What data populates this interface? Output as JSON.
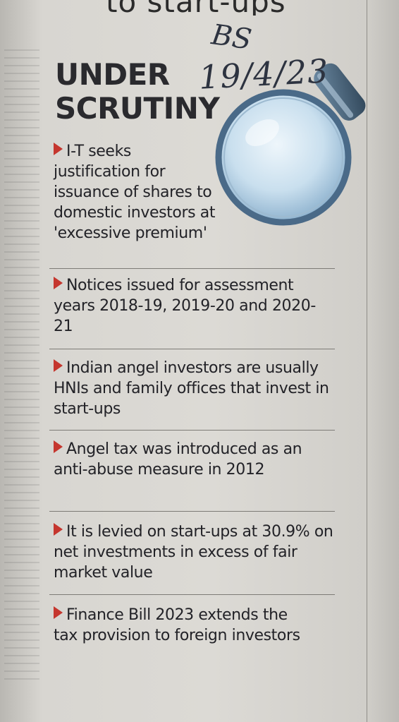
{
  "page": {
    "top_headline_fragment": "to start-ups",
    "heading": [
      "UNDER",
      "SCRUTINY"
    ],
    "handwritten_annotation": [
      "BS",
      "19/4/23"
    ],
    "accent_color": "#c5362e"
  },
  "bullets": [
    "I-T seeks justification for issuance of shares to domestic investors at 'excessive premium'",
    "Notices issued for assessment years 2018-19, 2019-20 and 2020-21",
    "Indian angel investors are usually HNIs and family offices that invest in start-ups",
    "Angel tax was introduced as an anti-abuse measure in 2012",
    "It is levied on start-ups at 30.9% on net investments in excess of fair market value",
    "Finance Bill 2023 extends the tax provision to foreign investors"
  ],
  "icons": [
    "magnifying-glass-icon",
    "triangle-bullet-icon"
  ]
}
